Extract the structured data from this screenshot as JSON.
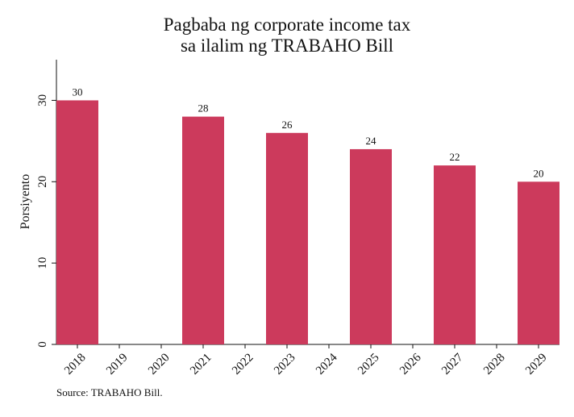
{
  "chart_data": {
    "type": "bar",
    "title_lines": [
      "Pagbaba ng corporate income tax",
      "sa ilalim ng TRABAHO Bill"
    ],
    "ylabel": "Porsiyento",
    "xlabel": "",
    "categories": [
      "2018",
      "2019",
      "2020",
      "2021",
      "2022",
      "2023",
      "2024",
      "2025",
      "2026",
      "2027",
      "2028",
      "2029"
    ],
    "values": [
      30,
      null,
      null,
      28,
      null,
      26,
      null,
      24,
      null,
      22,
      null,
      20
    ],
    "data_labels": [
      "30",
      "",
      "",
      "28",
      "",
      "26",
      "",
      "24",
      "",
      "22",
      "",
      "20"
    ],
    "ylim": [
      0,
      35
    ],
    "yticks": [
      0,
      10,
      20,
      30
    ],
    "bar_color": "#cc3a5c",
    "grid": false,
    "source": "Source: TRABAHO Bill."
  }
}
